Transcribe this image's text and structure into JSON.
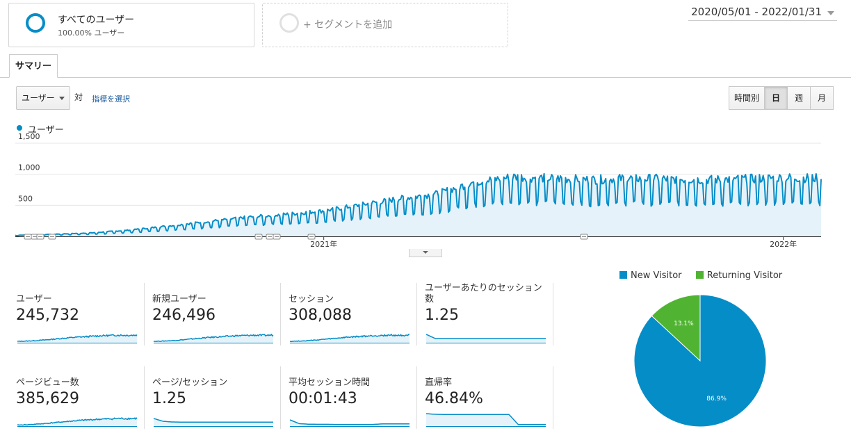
{
  "segments": {
    "primary": {
      "name": "すべてのユーザー",
      "sub": "100.00% ユーザー"
    },
    "add": {
      "label": "+ セグメントを追加"
    }
  },
  "date_range": "2020/05/01 - 2022/01/31",
  "tabs": [
    {
      "label": "サマリー",
      "active": true
    }
  ],
  "controls": {
    "metric_select": "ユーザー",
    "vs_label": "対",
    "choose_metric": "指標を選択",
    "granularity": [
      {
        "label": "時間別",
        "active": false
      },
      {
        "label": "日",
        "active": true
      },
      {
        "label": "週",
        "active": false
      },
      {
        "label": "月",
        "active": false
      }
    ]
  },
  "chart_data": {
    "type": "area",
    "series": [
      {
        "name": "ユーザー",
        "color": "#058dc7"
      }
    ],
    "ylim": [
      0,
      1500
    ],
    "y_ticks": [
      "1,500",
      "1,000",
      "500"
    ],
    "x_ticks": [
      "2021年",
      "2022年"
    ],
    "start_date": "2020/05/01",
    "end_date": "2022/01/31",
    "trend_weekly_avg": [
      {
        "date": "2020-05-01",
        "avg": 15
      },
      {
        "date": "2020-06-01",
        "avg": 30
      },
      {
        "date": "2020-07-01",
        "avg": 50
      },
      {
        "date": "2020-08-01",
        "avg": 90
      },
      {
        "date": "2020-09-01",
        "avg": 150
      },
      {
        "date": "2020-10-01",
        "avg": 210
      },
      {
        "date": "2020-11-01",
        "avg": 270
      },
      {
        "date": "2020-12-01",
        "avg": 310
      },
      {
        "date": "2021-01-01",
        "avg": 360
      },
      {
        "date": "2021-02-01",
        "avg": 450
      },
      {
        "date": "2021-03-01",
        "avg": 530
      },
      {
        "date": "2021-04-01",
        "avg": 600
      },
      {
        "date": "2021-05-01",
        "avg": 770
      },
      {
        "date": "2021-06-01",
        "avg": 840
      },
      {
        "date": "2021-07-01",
        "avg": 820
      },
      {
        "date": "2021-08-01",
        "avg": 800
      },
      {
        "date": "2021-09-01",
        "avg": 820
      },
      {
        "date": "2021-10-01",
        "avg": 810
      },
      {
        "date": "2021-11-01",
        "avg": 800
      },
      {
        "date": "2021-12-01",
        "avg": 810
      },
      {
        "date": "2022-01-01",
        "avg": 830
      },
      {
        "date": "2022-01-31",
        "avg": 820
      }
    ],
    "weekly_amplitude": 0.35,
    "annotation_marker_count": 9
  },
  "scorecards": [
    {
      "label": "ユーザー",
      "value": "245,732",
      "spark": [
        10,
        12,
        15,
        20,
        26,
        32,
        38,
        42,
        46,
        50,
        52,
        54,
        53,
        55
      ],
      "noisy": true
    },
    {
      "label": "新規ユーザー",
      "value": "246,496",
      "spark": [
        10,
        12,
        15,
        20,
        26,
        32,
        38,
        42,
        46,
        50,
        52,
        54,
        53,
        55
      ],
      "noisy": true
    },
    {
      "label": "セッション",
      "value": "308,088",
      "spark": [
        10,
        12,
        15,
        20,
        26,
        32,
        38,
        42,
        46,
        50,
        52,
        54,
        53,
        55
      ],
      "noisy": true
    },
    {
      "label": "ユーザーあたりのセッション数",
      "value": "1.25",
      "spark": [
        60,
        30,
        30,
        30,
        30,
        30,
        30,
        30,
        30,
        30,
        30,
        30,
        30,
        30
      ],
      "noisy": false
    },
    {
      "label": "ページビュー数",
      "value": "385,629",
      "spark": [
        8,
        10,
        14,
        19,
        25,
        31,
        37,
        42,
        46,
        50,
        52,
        55,
        54,
        56
      ],
      "noisy": true
    },
    {
      "label": "ページ/セッション",
      "value": "1.25",
      "spark": [
        55,
        35,
        30,
        29,
        29,
        29,
        29,
        29,
        29,
        29,
        29,
        29,
        29,
        29
      ],
      "noisy": false
    },
    {
      "label": "平均セッション時間",
      "value": "00:01:43",
      "spark": [
        45,
        18,
        14,
        13,
        13,
        12,
        12,
        12,
        12,
        12,
        16,
        16,
        16,
        16
      ],
      "noisy": false
    },
    {
      "label": "直帰率",
      "value": "46.84%",
      "spark": [
        90,
        85,
        84,
        84,
        84,
        84,
        84,
        84,
        84,
        84,
        12,
        12,
        12,
        12
      ],
      "noisy": false
    }
  ],
  "pie": {
    "legend": [
      {
        "label": "New Visitor",
        "color": "#058dc7"
      },
      {
        "label": "Returning Visitor",
        "color": "#50b432"
      }
    ],
    "slices": [
      {
        "label": "New Visitor",
        "percent": 86.9,
        "display": "86.9%",
        "color": "#058dc7"
      },
      {
        "label": "Returning Visitor",
        "percent": 13.1,
        "display": "13.1%",
        "color": "#50b432"
      }
    ]
  }
}
